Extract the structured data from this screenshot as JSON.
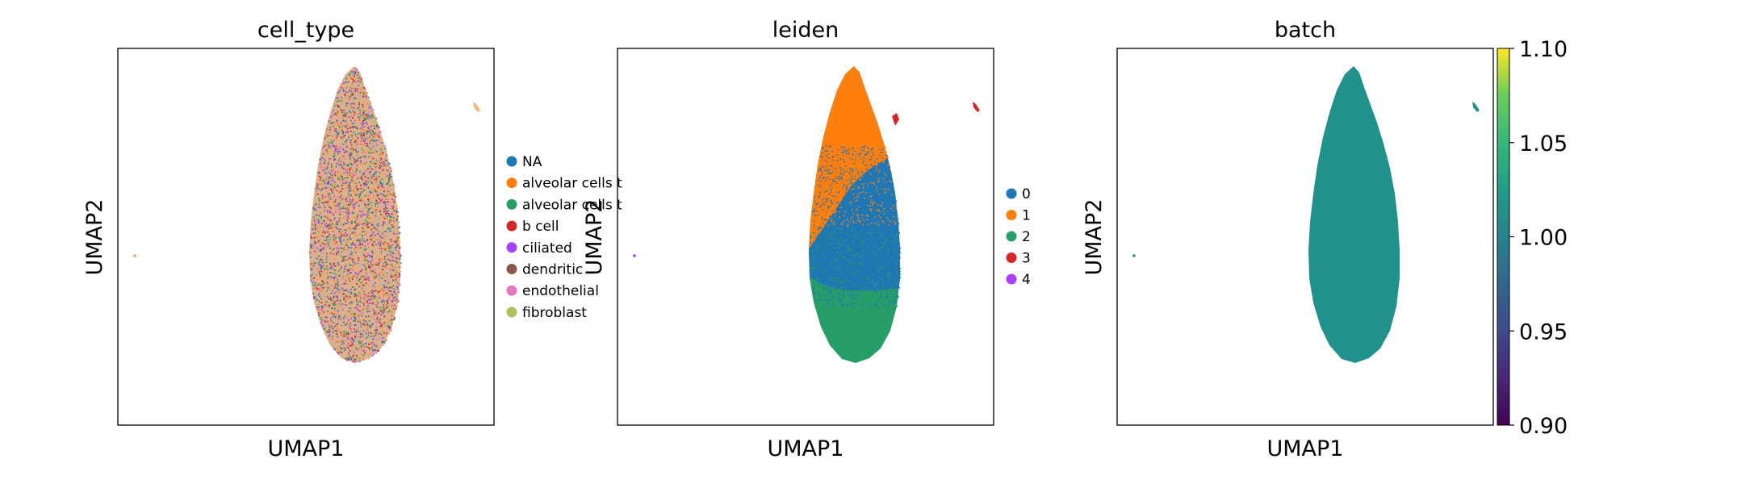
{
  "chart_data": [
    {
      "type": "scatter",
      "title": "cell_type",
      "xlabel": "UMAP1",
      "ylabel": "UMAP2",
      "color_mode": "categorical-mixed",
      "legend_placement": "right",
      "legend": [
        {
          "label": "NA",
          "color": "#1f77b4"
        },
        {
          "label": "alveolar cells t",
          "color": "#ff7f0e"
        },
        {
          "label": "alveolar cells t",
          "color": "#279e68"
        },
        {
          "label": "b cell",
          "color": "#d62728"
        },
        {
          "label": "ciliated",
          "color": "#aa40fc"
        },
        {
          "label": "dendritic",
          "color": "#8c564b"
        },
        {
          "label": "endothelial",
          "color": "#e377c2"
        },
        {
          "label": "fibroblast",
          "color": "#b5bd61"
        }
      ],
      "point_colors": [
        "#1f77b4",
        "#ff7f0e",
        "#279e68",
        "#d62728",
        "#aa40fc",
        "#8c564b",
        "#e377c2",
        "#b5bd61",
        "#f2b26a",
        "#f2b26a",
        "#e8a0a0"
      ],
      "grid": false
    },
    {
      "type": "scatter",
      "title": "leiden",
      "xlabel": "UMAP1",
      "ylabel": "UMAP2",
      "color_mode": "categorical-regions",
      "legend_placement": "right",
      "legend": [
        {
          "label": "0",
          "color": "#1f77b4"
        },
        {
          "label": "1",
          "color": "#ff7f0e"
        },
        {
          "label": "2",
          "color": "#279e68"
        },
        {
          "label": "3",
          "color": "#d62728"
        },
        {
          "label": "4",
          "color": "#aa40fc"
        }
      ],
      "grid": false
    },
    {
      "type": "scatter",
      "title": "batch",
      "xlabel": "UMAP1",
      "ylabel": "UMAP2",
      "color_mode": "continuous",
      "point_color": "#21918c",
      "colorbar": {
        "ticks": [
          "1.10",
          "1.05",
          "1.00",
          "0.95",
          "0.90"
        ],
        "range": [
          0.9,
          1.1
        ],
        "colormap": "viridis"
      },
      "grid": false
    }
  ]
}
